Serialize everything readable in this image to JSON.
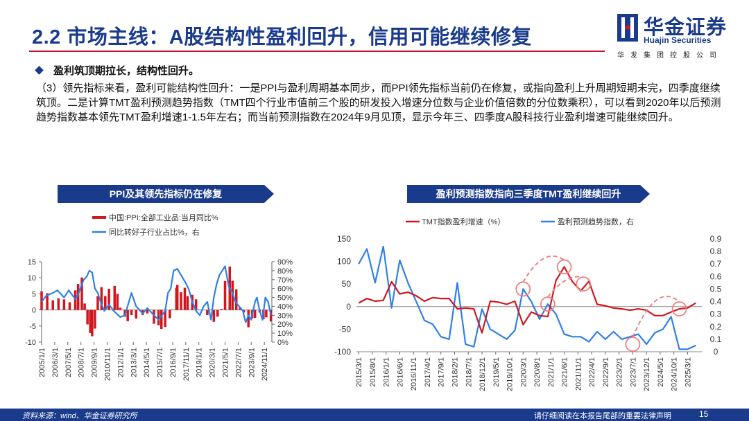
{
  "header": {
    "title": "2.2 市场主线：A股结构性盈利回升，信用可能继续修复",
    "logo_cn": "华金证券",
    "logo_en": "Huajin Securities",
    "logo_sub": "华发集团控股公司"
  },
  "bullet": "盈利筑顶期拉长，结构性回升。",
  "paragraph": "（3）领先指标来看，盈利可能结构性回升：一是PPI与盈利周期基本同步，而PPI领先指标当前仍在修复，或指向盈利上升周期短期未完，四季度继续筑顶。二是计算TMT盈利预测趋势指数（TMT四个行业市值前三个股的研发投入增速分位数与企业价值倍数的分位数乘积），可以看到2020年以后预测趋势指数基本领先TMT盈利增速1-1.5年左右；而当前预测指数在2024年9月见顶，显示今年三、四季度A股科技行业盈利增速可能继续回升。",
  "footer": {
    "source": "资料来源：wind、华金证券研究所",
    "legal": "请仔细阅读在本报告尾部的重要法律声明",
    "page": "15"
  },
  "colors": {
    "brand": "#1a3a8c",
    "red": "#d2161e",
    "blue": "#2e7fe8",
    "pink": "#f08080"
  },
  "chart_data": [
    {
      "type": "bar+line",
      "title": "PPI及其领先指标仍在修复",
      "legend_placement": "top-left",
      "left_axis": {
        "ylim": [
          -10,
          15
        ],
        "ticks": [
          "15",
          "10",
          "5",
          "0",
          "-5",
          "-10"
        ]
      },
      "right_axis": {
        "ylim": [
          0,
          90
        ],
        "ticks": [
          "90%",
          "80%",
          "70%",
          "60%",
          "50%",
          "40%",
          "30%",
          "20%",
          "10%",
          "0%"
        ]
      },
      "x_ticks": [
        "2005/1/1",
        "2006/3/1",
        "2007/5/1",
        "2008/7/1",
        "2009/9/1",
        "2010/11/1",
        "2012/1/1",
        "2013/3/1",
        "2014/5/1",
        "2015/7/1",
        "2016/9/1",
        "2017/11/1",
        "2019/1/1",
        "2020/3/1",
        "2021/5/1",
        "2022/7/1",
        "2023/9/1",
        "2024/11/1"
      ],
      "series": [
        {
          "name": "中国:PPI:全部工业品:当月同比%",
          "kind": "bar",
          "axis": "left",
          "color": "#d2161e",
          "x": [
            "2005-01",
            "2005-07",
            "2006-01",
            "2006-07",
            "2007-01",
            "2007-07",
            "2008-01",
            "2008-04",
            "2008-08",
            "2008-11",
            "2009-02",
            "2009-05",
            "2009-07",
            "2009-10",
            "2010-01",
            "2010-05",
            "2010-09",
            "2011-01",
            "2011-07",
            "2011-10",
            "2012-01",
            "2012-06",
            "2012-09",
            "2013-01",
            "2013-06",
            "2014-01",
            "2014-06",
            "2015-01",
            "2015-06",
            "2015-09",
            "2016-01",
            "2016-06",
            "2016-09",
            "2017-01",
            "2017-02",
            "2017-06",
            "2017-10",
            "2018-01",
            "2018-06",
            "2018-10",
            "2019-01",
            "2019-06",
            "2019-10",
            "2020-01",
            "2020-05",
            "2020-09",
            "2021-01",
            "2021-05",
            "2021-10",
            "2022-01",
            "2022-05",
            "2022-09",
            "2023-01",
            "2023-06",
            "2023-10",
            "2024-01",
            "2024-06",
            "2024-10",
            "2025-01",
            "2025-06"
          ],
          "values": [
            5.8,
            5.2,
            3.0,
            3.6,
            3.3,
            2.4,
            6.1,
            8.1,
            10.1,
            2.0,
            -4.5,
            -7.2,
            -8.2,
            -5.8,
            4.3,
            7.1,
            4.3,
            6.6,
            7.5,
            5.0,
            0.7,
            -2.1,
            -3.5,
            -1.6,
            -2.7,
            -1.6,
            -1.1,
            -4.3,
            -4.8,
            -5.9,
            -5.3,
            -2.6,
            0.1,
            6.9,
            7.8,
            5.5,
            6.9,
            4.3,
            4.7,
            3.3,
            0.1,
            0.0,
            -1.6,
            0.1,
            -3.7,
            -2.1,
            0.3,
            9.0,
            13.5,
            9.1,
            6.4,
            0.9,
            -0.8,
            -5.4,
            -2.6,
            -2.5,
            -0.8,
            -2.9,
            -2.3,
            -3.6
          ]
        },
        {
          "name": "同比转好子行业占比%，右",
          "kind": "line",
          "axis": "right",
          "color": "#2e7fe8",
          "x": [
            "2005-01",
            "2005-06",
            "2006-01",
            "2006-06",
            "2007-01",
            "2007-06",
            "2008-01",
            "2008-04",
            "2008-07",
            "2008-10",
            "2009-01",
            "2009-04",
            "2009-07",
            "2009-10",
            "2010-01",
            "2010-04",
            "2010-08",
            "2011-01",
            "2011-06",
            "2012-01",
            "2012-06",
            "2013-01",
            "2013-06",
            "2014-01",
            "2014-06",
            "2015-01",
            "2015-06",
            "2016-01",
            "2016-04",
            "2016-07",
            "2016-10",
            "2017-02",
            "2017-06",
            "2017-10",
            "2018-02",
            "2018-06",
            "2018-10",
            "2019-02",
            "2019-06",
            "2019-10",
            "2020-02",
            "2020-05",
            "2020-08",
            "2020-11",
            "2021-02",
            "2021-05",
            "2021-09",
            "2022-01",
            "2022-04",
            "2022-08",
            "2022-12",
            "2023-03",
            "2023-06",
            "2023-09",
            "2024-01",
            "2024-03",
            "2024-06",
            "2024-09",
            "2024-12",
            "2025-03",
            "2025-06"
          ],
          "values": [
            45,
            52,
            55,
            58,
            50,
            58,
            48,
            53,
            62,
            70,
            73,
            80,
            78,
            60,
            55,
            45,
            35,
            42,
            35,
            28,
            30,
            55,
            40,
            32,
            38,
            30,
            25,
            35,
            55,
            60,
            80,
            82,
            75,
            68,
            60,
            45,
            35,
            30,
            40,
            45,
            25,
            50,
            65,
            75,
            80,
            85,
            62,
            55,
            45,
            40,
            35,
            22,
            30,
            25,
            45,
            50,
            35,
            25,
            50,
            45,
            30
          ]
        }
      ]
    },
    {
      "type": "line",
      "title": "盈利预测指数指向三季度TMT盈利继续回升",
      "legend_placement": "top",
      "left_axis": {
        "ylim": [
          -100,
          150
        ],
        "ticks": [
          "150",
          "100",
          "50",
          "0",
          "-50",
          "-100"
        ]
      },
      "right_axis": {
        "ylim": [
          0,
          0.9
        ],
        "ticks": [
          "0.9",
          "0.8",
          "0.7",
          "0.6",
          "0.5",
          "0.4",
          "0.3",
          "0.2",
          "0.1",
          "0"
        ]
      },
      "x_ticks": [
        "2015/3/1",
        "2015/8/1",
        "2016/1/1",
        "2016/6/1",
        "2016/11/1",
        "2017/4/1",
        "2017/9/1",
        "2018/2/1",
        "2018/7/1",
        "2018/12/1",
        "2019/5/1",
        "2019/10/1",
        "2020/3/1",
        "2020/8/1",
        "2021/1/1",
        "2021/6/1",
        "2021/11/1",
        "2022/4/1",
        "2022/9/1",
        "2023/2/1",
        "2023/7/1",
        "2023/12/1",
        "2024/5/1",
        "2024/10/1",
        "2025/3/1"
      ],
      "series": [
        {
          "name": "TMT指数盈利增速（%）",
          "axis": "left",
          "color": "#d2161e",
          "x": [
            "2015-03",
            "2015-06",
            "2015-09",
            "2015-12",
            "2016-03",
            "2016-06",
            "2016-09",
            "2016-12",
            "2017-03",
            "2017-06",
            "2017-09",
            "2017-12",
            "2018-03",
            "2018-06",
            "2018-09",
            "2018-12",
            "2019-03",
            "2019-06",
            "2019-09",
            "2019-12",
            "2020-03",
            "2020-06",
            "2020-09",
            "2020-12",
            "2021-03",
            "2021-06",
            "2021-09",
            "2021-12",
            "2022-03",
            "2022-06",
            "2022-09",
            "2022-12",
            "2023-03",
            "2023-06",
            "2023-09",
            "2023-12",
            "2024-03",
            "2024-06",
            "2024-09",
            "2024-12",
            "2025-03",
            "2025-06"
          ],
          "values": [
            8,
            18,
            12,
            14,
            55,
            28,
            32,
            24,
            12,
            20,
            18,
            18,
            -5,
            -3,
            -5,
            -58,
            12,
            10,
            5,
            12,
            -40,
            -12,
            -20,
            -22,
            58,
            88,
            55,
            35,
            56,
            5,
            2,
            -3,
            -5,
            -8,
            -5,
            -8,
            -20,
            -20,
            -12,
            -5,
            -3,
            8
          ]
        },
        {
          "name": "盈利预测趋势指数，右",
          "axis": "right",
          "color": "#2e7fe8",
          "x": [
            "2015-03",
            "2015-06",
            "2015-09",
            "2015-12",
            "2016-03",
            "2016-06",
            "2016-09",
            "2016-12",
            "2017-03",
            "2017-06",
            "2017-09",
            "2017-12",
            "2018-03",
            "2018-06",
            "2018-09",
            "2018-12",
            "2019-03",
            "2019-06",
            "2019-09",
            "2019-12",
            "2020-03",
            "2020-06",
            "2020-09",
            "2020-12",
            "2021-03",
            "2021-06",
            "2021-09",
            "2021-12",
            "2022-03",
            "2022-06",
            "2022-09",
            "2022-12",
            "2023-03",
            "2023-06",
            "2023-09",
            "2023-12",
            "2024-03",
            "2024-06",
            "2024-09",
            "2024-12",
            "2025-03",
            "2025-06"
          ],
          "values": [
            0.7,
            0.82,
            0.55,
            0.84,
            0.35,
            0.73,
            0.55,
            0.4,
            0.25,
            0.22,
            0.12,
            0.1,
            0.55,
            0.06,
            0.04,
            0.34,
            0.18,
            0.14,
            0.1,
            0.17,
            0.5,
            0.4,
            0.26,
            0.38,
            0.3,
            0.14,
            0.12,
            0.12,
            0.08,
            0.16,
            0.1,
            0.16,
            0.1,
            0.12,
            0.14,
            0.06,
            0.15,
            0.18,
            0.28,
            0.02,
            0.02,
            0.05
          ]
        }
      ],
      "annotations": [
        "dashed arcs linking TMT profit peaks to predictive index peaks"
      ]
    }
  ]
}
